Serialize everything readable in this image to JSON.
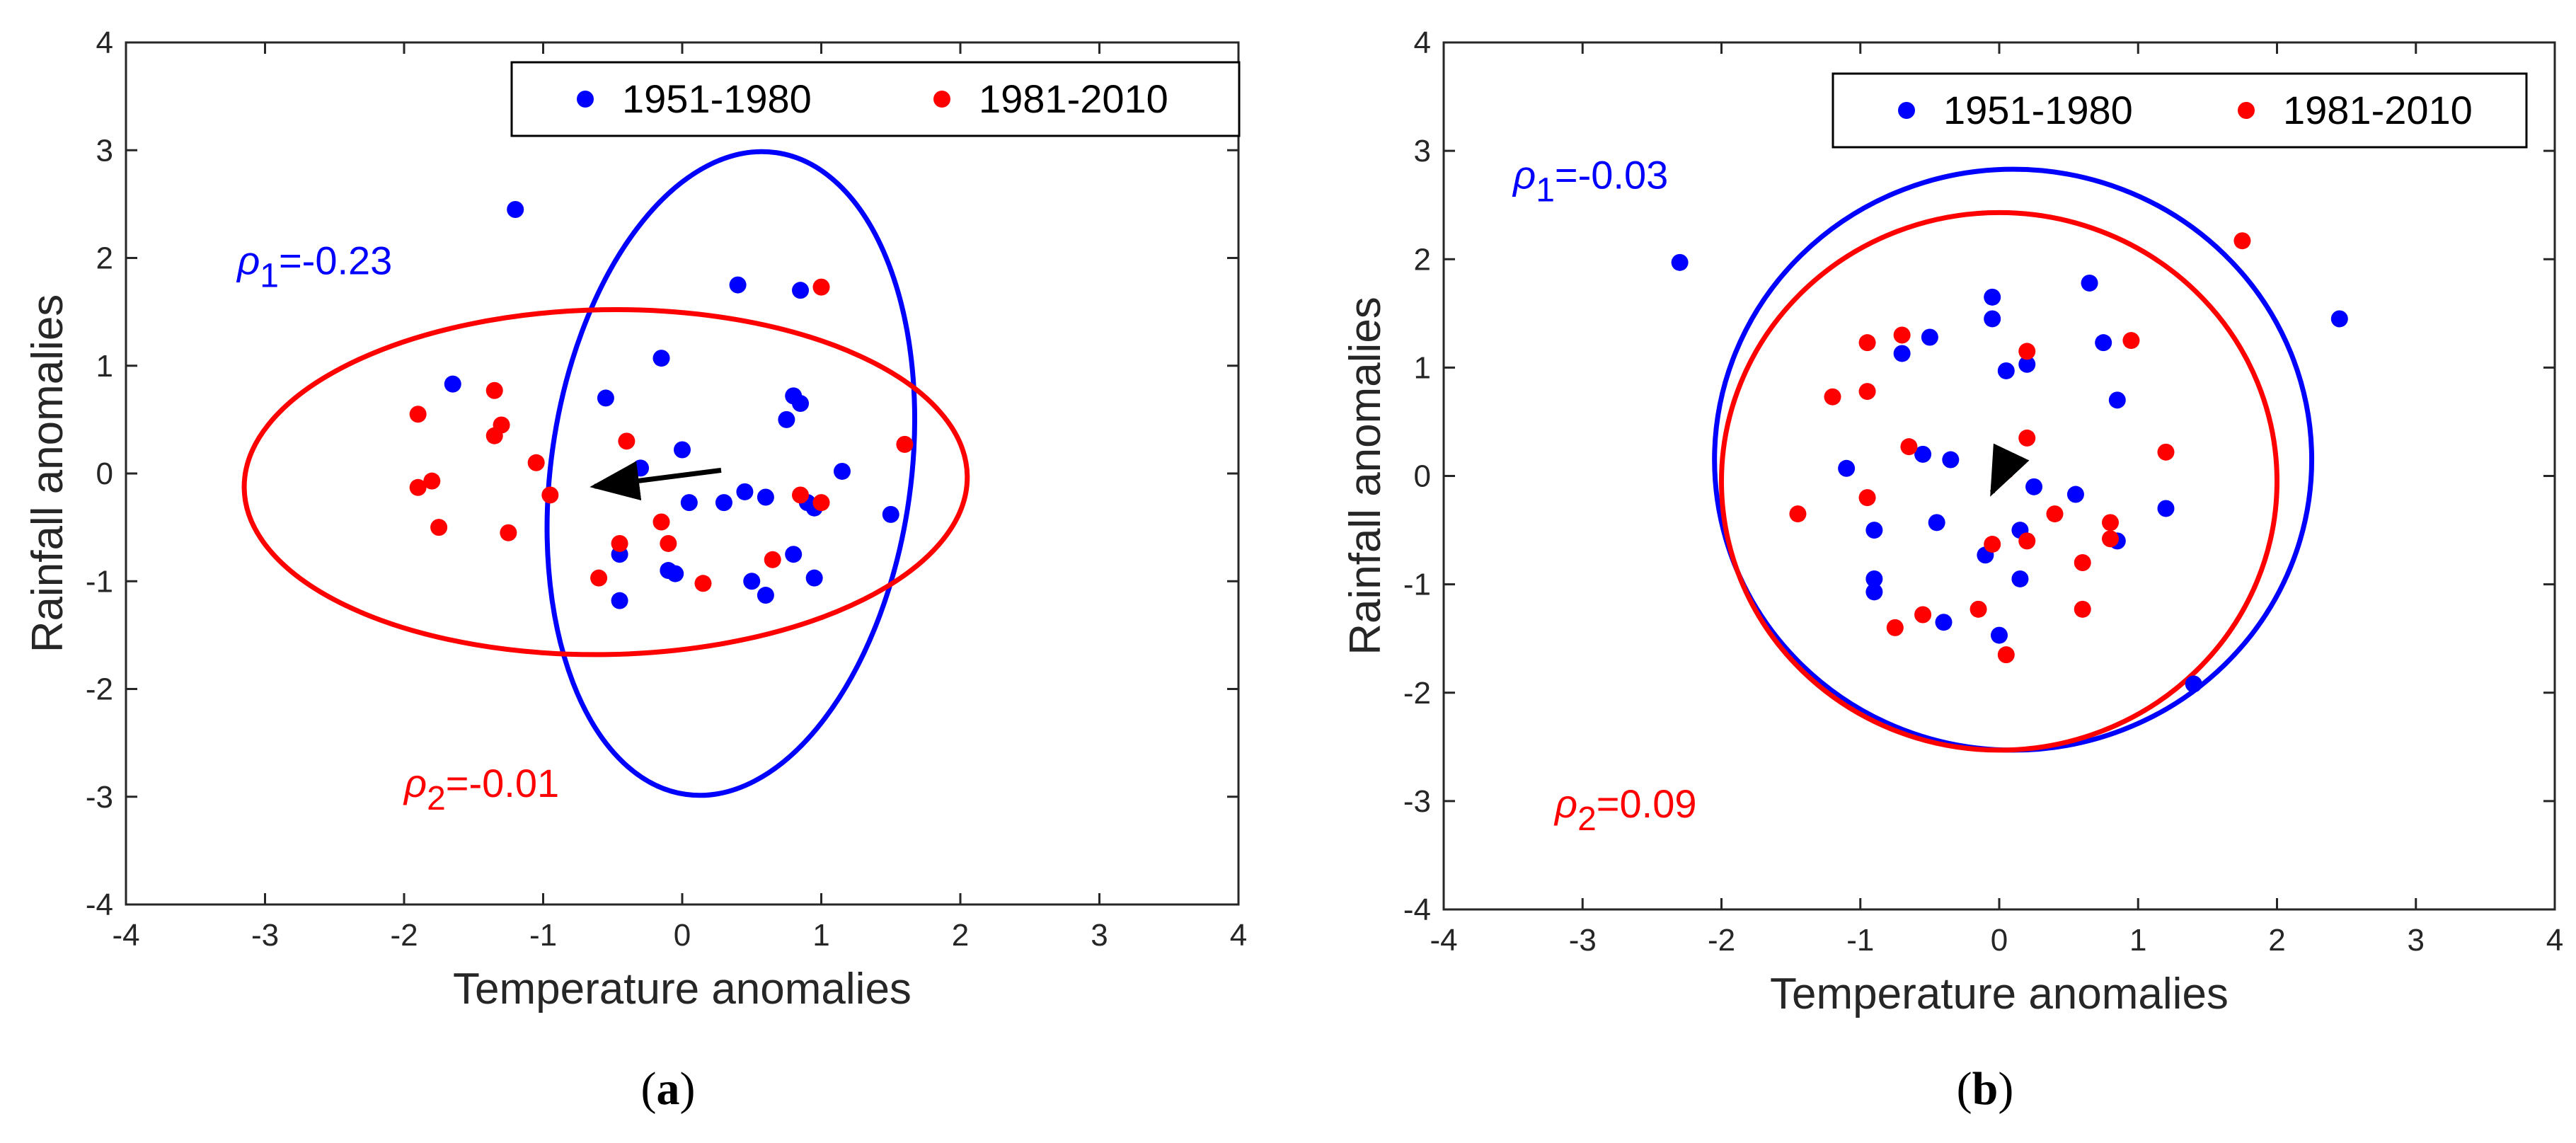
{
  "chart_data": [
    {
      "type": "scatter",
      "panel_label": {
        "open": "(",
        "letter": "a",
        "close": ")"
      },
      "xlabel": "Temperature anomalies",
      "ylabel": "Rainfall anomalies",
      "xlim": [
        -4,
        4
      ],
      "ylim": [
        -4,
        4
      ],
      "xticks": [
        -4,
        -3,
        -2,
        -1,
        0,
        1,
        2,
        3,
        4
      ],
      "yticks": [
        -4,
        -3,
        -2,
        -1,
        0,
        1,
        2,
        3,
        4
      ],
      "xtick_labels": [
        "-4",
        "-3",
        "-2",
        "-1",
        "0",
        "1",
        "2",
        "3",
        "4"
      ],
      "ytick_labels": [
        "-4",
        "-3",
        "-2",
        "-1",
        "0",
        "1",
        "2",
        "3",
        "4"
      ],
      "grid": false,
      "legend_position": "top-right",
      "series": [
        {
          "name": "1951-1980",
          "color": "#0000ff",
          "points": [
            [
              -1.2,
              2.45
            ],
            [
              -0.15,
              1.07
            ],
            [
              0.4,
              1.75
            ],
            [
              0.85,
              1.7
            ],
            [
              -1.65,
              0.83
            ],
            [
              -0.55,
              0.7
            ],
            [
              0.75,
              0.5
            ],
            [
              0.8,
              0.72
            ],
            [
              0.85,
              0.65
            ],
            [
              -0.3,
              0.05
            ],
            [
              0.0,
              0.22
            ],
            [
              1.15,
              0.02
            ],
            [
              0.05,
              -0.27
            ],
            [
              0.3,
              -0.27
            ],
            [
              0.45,
              -0.17
            ],
            [
              0.6,
              -0.22
            ],
            [
              0.9,
              -0.27
            ],
            [
              0.95,
              -0.32
            ],
            [
              1.5,
              -0.38
            ],
            [
              -0.45,
              -0.75
            ],
            [
              -0.1,
              -0.9
            ],
            [
              -0.05,
              -0.93
            ],
            [
              0.5,
              -1.0
            ],
            [
              0.6,
              -1.13
            ],
            [
              0.8,
              -0.75
            ],
            [
              0.95,
              -0.97
            ],
            [
              -0.45,
              -1.18
            ]
          ]
        },
        {
          "name": "1981-2010",
          "color": "#ff0000",
          "points": [
            [
              -1.9,
              0.55
            ],
            [
              -1.9,
              -0.13
            ],
            [
              -1.8,
              -0.07
            ],
            [
              -1.75,
              -0.5
            ],
            [
              -1.35,
              0.77
            ],
            [
              -1.3,
              0.45
            ],
            [
              -1.35,
              0.35
            ],
            [
              -1.05,
              0.1
            ],
            [
              -0.95,
              -0.2
            ],
            [
              -0.4,
              0.3
            ],
            [
              -1.25,
              -0.55
            ],
            [
              -0.6,
              -0.97
            ],
            [
              -0.45,
              -0.65
            ],
            [
              -0.15,
              -0.45
            ],
            [
              -0.1,
              -0.65
            ],
            [
              0.15,
              -1.02
            ],
            [
              0.65,
              -0.8
            ],
            [
              0.85,
              -0.2
            ],
            [
              1.0,
              -0.27
            ],
            [
              1.0,
              1.73
            ],
            [
              1.6,
              0.27
            ]
          ]
        }
      ],
      "ellipses": [
        {
          "series": "1951-1980",
          "cx": 0.35,
          "cy": 0.0,
          "rx": 2.33,
          "ry": 1.67,
          "angle_deg": 82
        },
        {
          "series": "1981-2010",
          "cx": -0.55,
          "cy": -0.08,
          "rx": 2.6,
          "ry": 1.6,
          "angle_deg": 1
        }
      ],
      "arrow": {
        "from": [
          0.28,
          0.03
        ],
        "to": [
          -0.63,
          -0.12
        ]
      },
      "annotations": [
        {
          "symbol": "ρ",
          "subscript": "1",
          "value": "=-0.23",
          "color": "#0000ff",
          "x": -3.2,
          "y": 1.85
        },
        {
          "symbol": "ρ",
          "subscript": "2",
          "value": "=-0.01",
          "color": "#ff0000",
          "x": -2.0,
          "y": -3.0
        }
      ]
    },
    {
      "type": "scatter",
      "panel_label": {
        "open": "(",
        "letter": "b",
        "close": ")"
      },
      "xlabel": "Temperature anomalies",
      "ylabel": "Rainfall anomalies",
      "xlim": [
        -4,
        4
      ],
      "ylim": [
        -4,
        4
      ],
      "xticks": [
        -4,
        -3,
        -2,
        -1,
        0,
        1,
        2,
        3,
        4
      ],
      "yticks": [
        -4,
        -3,
        -2,
        -1,
        0,
        1,
        2,
        3,
        4
      ],
      "xtick_labels": [
        "-4",
        "-3",
        "-2",
        "-1",
        "0",
        "1",
        "2",
        "3",
        "4"
      ],
      "ytick_labels": [
        "-4",
        "-3",
        "-2",
        "-1",
        "0",
        "1",
        "2",
        "3",
        "4"
      ],
      "grid": false,
      "legend_position": "top-right",
      "series": [
        {
          "name": "1951-1980",
          "color": "#0000ff",
          "points": [
            [
              -2.3,
              1.97
            ],
            [
              2.45,
              1.45
            ],
            [
              -0.05,
              1.65
            ],
            [
              -0.05,
              1.45
            ],
            [
              0.65,
              1.78
            ],
            [
              -0.5,
              1.28
            ],
            [
              -0.7,
              1.13
            ],
            [
              0.2,
              1.03
            ],
            [
              0.05,
              0.97
            ],
            [
              0.75,
              1.23
            ],
            [
              0.85,
              0.7
            ],
            [
              -1.1,
              0.07
            ],
            [
              -0.55,
              0.2
            ],
            [
              -0.35,
              0.15
            ],
            [
              0.25,
              -0.1
            ],
            [
              0.55,
              -0.17
            ],
            [
              1.2,
              -0.3
            ],
            [
              -0.9,
              -0.5
            ],
            [
              -0.45,
              -0.43
            ],
            [
              0.15,
              -0.5
            ],
            [
              0.85,
              -0.6
            ],
            [
              -0.1,
              -0.73
            ],
            [
              0.15,
              -0.95
            ],
            [
              -0.9,
              -0.95
            ],
            [
              -0.9,
              -1.07
            ],
            [
              -0.4,
              -1.35
            ],
            [
              0.0,
              -1.47
            ],
            [
              1.4,
              -1.92
            ]
          ]
        },
        {
          "name": "1981-2010",
          "color": "#ff0000",
          "points": [
            [
              -0.95,
              1.23
            ],
            [
              -0.7,
              1.3
            ],
            [
              0.2,
              1.15
            ],
            [
              0.95,
              1.25
            ],
            [
              1.75,
              2.17
            ],
            [
              -1.2,
              0.73
            ],
            [
              -0.95,
              0.78
            ],
            [
              -0.65,
              0.27
            ],
            [
              0.2,
              0.35
            ],
            [
              1.2,
              0.22
            ],
            [
              -0.95,
              -0.2
            ],
            [
              -1.45,
              -0.35
            ],
            [
              0.05,
              0.05
            ],
            [
              0.4,
              -0.35
            ],
            [
              0.8,
              -0.43
            ],
            [
              -0.05,
              -0.63
            ],
            [
              0.2,
              -0.6
            ],
            [
              0.8,
              -0.58
            ],
            [
              0.6,
              -0.8
            ],
            [
              -0.75,
              -1.4
            ],
            [
              -0.55,
              -1.28
            ],
            [
              -0.15,
              -1.23
            ],
            [
              0.05,
              -1.65
            ],
            [
              0.6,
              -1.23
            ]
          ]
        }
      ],
      "ellipses": [
        {
          "series": "1951-1980",
          "cx": 0.1,
          "cy": 0.15,
          "rx": 2.15,
          "ry": 2.68,
          "angle_deg": 0
        },
        {
          "series": "1981-2010",
          "cx": 0.0,
          "cy": -0.05,
          "rx": 2.0,
          "ry": 2.48,
          "angle_deg": 0
        }
      ],
      "arrow": {
        "from": [
          0.05,
          0.12
        ],
        "to": [
          -0.05,
          -0.15
        ]
      },
      "annotations": [
        {
          "symbol": "ρ",
          "subscript": "1",
          "value": "=-0.03",
          "color": "#0000ff",
          "x": -3.5,
          "y": 2.65
        },
        {
          "symbol": "ρ",
          "subscript": "2",
          "value": "=0.09",
          "color": "#ff0000",
          "x": -3.2,
          "y": -3.15
        }
      ]
    }
  ]
}
